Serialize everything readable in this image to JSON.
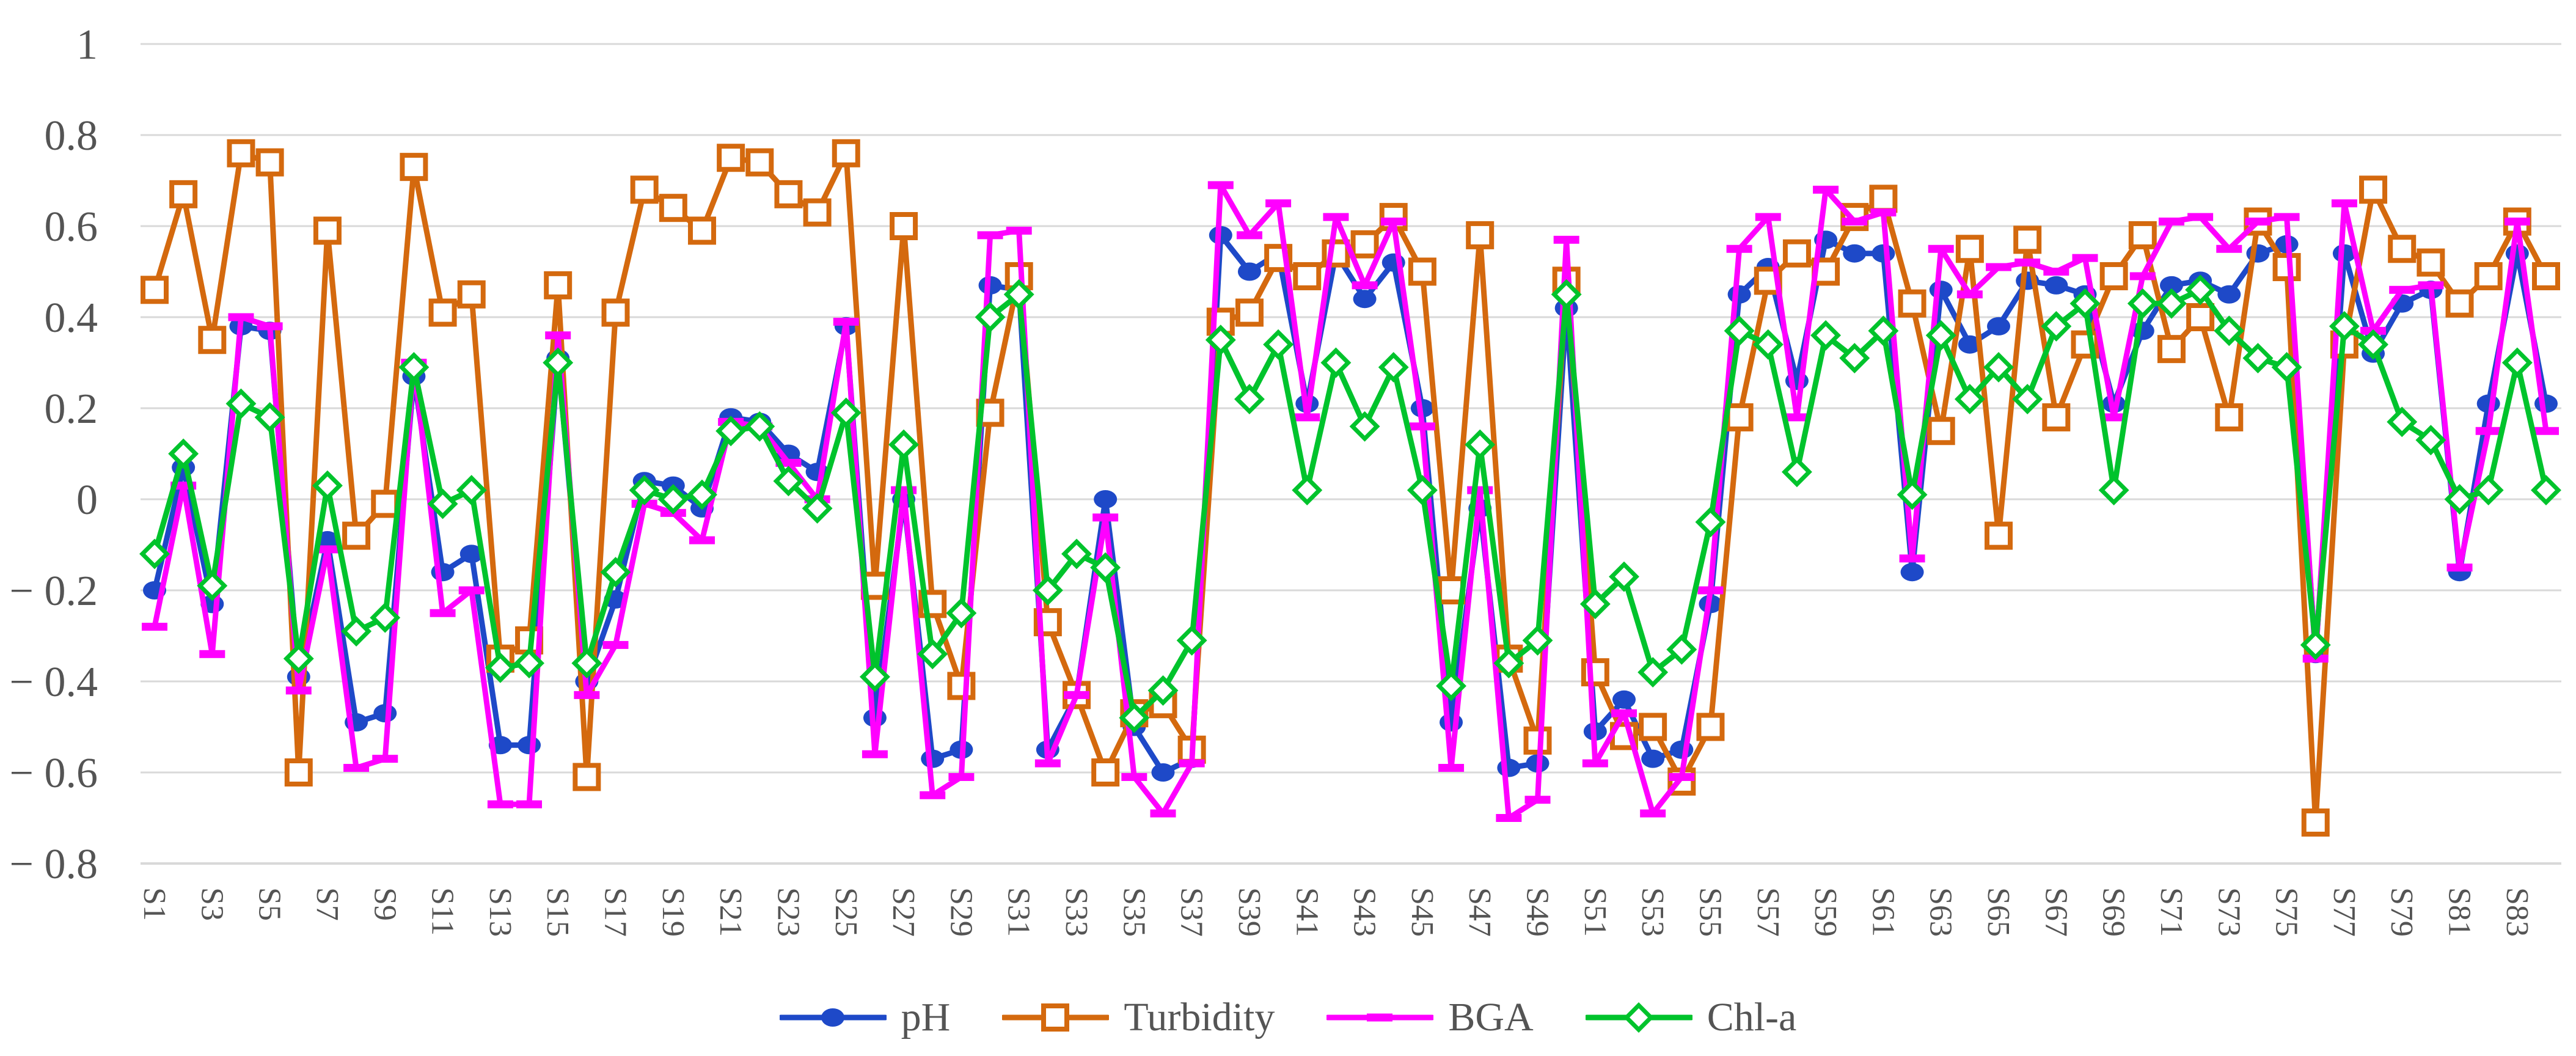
{
  "chart_data": {
    "type": "line",
    "title": "",
    "xlabel": "",
    "ylabel": "",
    "ylim": [
      -0.8,
      1
    ],
    "y_ticks": [
      1,
      0.8,
      0.6,
      0.4,
      0.2,
      0,
      -0.2,
      -0.4,
      -0.6,
      -0.8
    ],
    "y_tick_labels": [
      "1",
      "0.8",
      "0.6",
      "0.4",
      "0.2",
      "0",
      "− 0.2",
      "− 0.4",
      "− 0.6",
      "− 0.8"
    ],
    "x_tick_step": 2,
    "grid": "horizontal",
    "gridline_color": "#D9D9D9",
    "axis_text_color": "#545454",
    "legend_position": "bottom",
    "categories": [
      "S1",
      "S2",
      "S3",
      "S4",
      "S5",
      "S6",
      "S7",
      "S8",
      "S9",
      "S10",
      "S11",
      "S12",
      "S13",
      "S14",
      "S15",
      "S16",
      "S17",
      "S18",
      "S19",
      "S20",
      "S21",
      "S22",
      "S23",
      "S24",
      "S25",
      "S26",
      "S27",
      "S28",
      "S29",
      "S30",
      "S31",
      "S32",
      "S33",
      "S34",
      "S35",
      "S36",
      "S37",
      "S38",
      "S39",
      "S40",
      "S41",
      "S42",
      "S43",
      "S44",
      "S45",
      "S46",
      "S47",
      "S48",
      "S49",
      "S50",
      "S51",
      "S52",
      "S53",
      "S54",
      "S55",
      "S56",
      "S57",
      "S58",
      "S59",
      "S60",
      "S61",
      "S62",
      "S63",
      "S64",
      "S65",
      "S66",
      "S67",
      "S68",
      "S69",
      "S70",
      "S71",
      "S72",
      "S73",
      "S74",
      "S75",
      "S76",
      "S77",
      "S78",
      "S79",
      "S80",
      "S81",
      "S82",
      "S83",
      "S84"
    ],
    "series": [
      {
        "name": "pH",
        "color": "#1E49C8",
        "marker": "filled-circle",
        "values": [
          -0.2,
          0.07,
          -0.23,
          0.38,
          0.37,
          -0.39,
          -0.09,
          -0.49,
          -0.47,
          0.27,
          -0.16,
          -0.12,
          -0.54,
          -0.54,
          0.31,
          -0.4,
          -0.22,
          0.04,
          0.03,
          -0.02,
          0.18,
          0.17,
          0.1,
          0.06,
          0.38,
          -0.48,
          0.0,
          -0.57,
          -0.55,
          0.47,
          0.46,
          -0.55,
          -0.43,
          0.0,
          -0.5,
          -0.6,
          -0.57,
          0.58,
          0.5,
          0.54,
          0.21,
          0.54,
          0.44,
          0.52,
          0.2,
          -0.49,
          -0.02,
          -0.59,
          -0.58,
          0.42,
          -0.51,
          -0.44,
          -0.57,
          -0.55,
          -0.23,
          0.45,
          0.51,
          0.26,
          0.57,
          0.54,
          0.54,
          -0.16,
          0.46,
          0.34,
          0.38,
          0.48,
          0.47,
          0.45,
          0.21,
          0.37,
          0.47,
          0.48,
          0.45,
          0.54,
          0.56,
          -0.34,
          0.54,
          0.32,
          0.43,
          0.46,
          -0.16,
          0.21,
          0.54,
          0.21
        ]
      },
      {
        "name": "Turbidity",
        "color": "#D4690E",
        "marker": "open-square",
        "values": [
          0.46,
          0.67,
          0.35,
          0.76,
          0.74,
          -0.6,
          0.59,
          -0.08,
          -0.01,
          0.73,
          0.41,
          0.45,
          -0.35,
          -0.31,
          0.47,
          -0.61,
          0.41,
          0.68,
          0.64,
          0.59,
          0.75,
          0.74,
          0.67,
          0.63,
          0.76,
          -0.19,
          0.6,
          -0.23,
          -0.41,
          0.19,
          0.49,
          -0.27,
          -0.43,
          -0.6,
          -0.47,
          -0.45,
          -0.55,
          0.39,
          0.41,
          0.53,
          0.49,
          0.54,
          0.56,
          0.62,
          0.5,
          -0.2,
          0.58,
          -0.35,
          -0.53,
          0.48,
          -0.38,
          -0.52,
          -0.5,
          -0.62,
          -0.5,
          0.18,
          0.48,
          0.54,
          0.5,
          0.62,
          0.66,
          0.43,
          0.15,
          0.55,
          -0.08,
          0.57,
          0.18,
          0.34,
          0.49,
          0.58,
          0.33,
          0.4,
          0.18,
          0.61,
          0.51,
          -0.71,
          0.34,
          0.68,
          0.55,
          0.52,
          0.43,
          0.49,
          0.61,
          0.49
        ]
      },
      {
        "name": "BGA",
        "color": "#FF00FF",
        "marker": "dash",
        "values": [
          -0.28,
          0.03,
          -0.34,
          0.4,
          0.38,
          -0.42,
          -0.11,
          -0.59,
          -0.57,
          0.3,
          -0.25,
          -0.2,
          -0.67,
          -0.67,
          0.36,
          -0.43,
          -0.32,
          -0.01,
          -0.03,
          -0.09,
          0.17,
          0.16,
          0.08,
          0.0,
          0.39,
          -0.56,
          0.02,
          -0.65,
          -0.61,
          0.58,
          0.59,
          -0.58,
          -0.43,
          -0.04,
          -0.61,
          -0.69,
          -0.58,
          0.69,
          0.58,
          0.65,
          0.18,
          0.62,
          0.47,
          0.61,
          0.16,
          -0.59,
          0.02,
          -0.7,
          -0.66,
          0.57,
          -0.58,
          -0.47,
          -0.69,
          -0.61,
          -0.2,
          0.55,
          0.62,
          0.18,
          0.68,
          0.61,
          0.63,
          -0.13,
          0.55,
          0.45,
          0.51,
          0.52,
          0.5,
          0.53,
          0.18,
          0.49,
          0.61,
          0.62,
          0.55,
          0.61,
          0.62,
          -0.35,
          0.65,
          0.37,
          0.46,
          0.47,
          -0.15,
          0.15,
          0.61,
          0.15
        ]
      },
      {
        "name": "Chl-a",
        "color": "#00C32C",
        "marker": "open-diamond",
        "values": [
          -0.12,
          0.1,
          -0.19,
          0.21,
          0.18,
          -0.35,
          0.03,
          -0.29,
          -0.26,
          0.29,
          -0.01,
          0.02,
          -0.37,
          -0.36,
          0.3,
          -0.36,
          -0.16,
          0.02,
          0.0,
          0.01,
          0.15,
          0.16,
          0.04,
          -0.02,
          0.19,
          -0.39,
          0.12,
          -0.34,
          -0.25,
          0.4,
          0.45,
          -0.2,
          -0.12,
          -0.15,
          -0.48,
          -0.42,
          -0.31,
          0.35,
          0.22,
          0.34,
          0.02,
          0.3,
          0.16,
          0.29,
          0.02,
          -0.41,
          0.12,
          -0.36,
          -0.31,
          0.45,
          -0.23,
          -0.17,
          -0.38,
          -0.33,
          -0.05,
          0.37,
          0.34,
          0.06,
          0.36,
          0.31,
          0.37,
          0.01,
          0.36,
          0.22,
          0.29,
          0.22,
          0.38,
          0.43,
          0.02,
          0.43,
          0.43,
          0.46,
          0.37,
          0.31,
          0.29,
          -0.32,
          0.38,
          0.34,
          0.17,
          0.13,
          0.0,
          0.02,
          0.3,
          0.02
        ]
      }
    ]
  }
}
